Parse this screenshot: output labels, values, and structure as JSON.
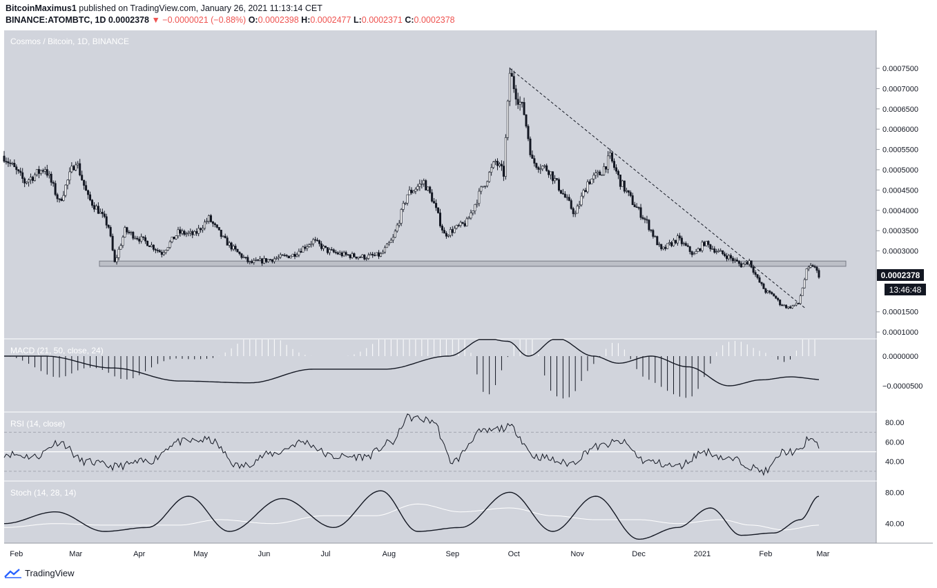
{
  "header": {
    "author": "BitcoinMaximus1",
    "published_text": "published on TradingView.com, January 26, 2021 11:13:14 CET",
    "symbol_line": "BINANCE:ATOMBTC, 1D",
    "last": "0.0002378",
    "change": "▼ −0.0000021 (−0.88%)",
    "o_label": "O:",
    "o_value": "0.0002398",
    "h_label": "H:",
    "h_value": "0.0002477",
    "l_label": "L:",
    "l_value": "0.0002371",
    "c_label": "C:",
    "c_value": "0.0002378"
  },
  "colors": {
    "panel_bg": "#d1d4dc",
    "candle": "#131722",
    "rsi_mid_line": "#ffffff",
    "stoch_d": "#ffffff",
    "change_red": "#ef5350",
    "price_tag_bg": "#131722"
  },
  "footer": {
    "brand": "TradingView",
    "icon": "tradingview-logo-icon"
  },
  "chart_data": [
    {
      "type": "candlestick",
      "title": "Cosmos / Bitcoin, 1D, BINANCE",
      "unit": "BTC",
      "y_ticks": [
        "0.0007500",
        "0.0007000",
        "0.0006500",
        "0.0006000",
        "0.0005500",
        "0.0005000",
        "0.0004500",
        "0.0004000",
        "0.0003500",
        "0.0003000",
        "0.0001500",
        "0.0001000"
      ],
      "ylim": [
        9e-05,
        0.00083
      ],
      "x_ticks": [
        "Feb",
        "Mar",
        "Apr",
        "May",
        "Jun",
        "Jul",
        "Aug",
        "Sep",
        "Oct",
        "Nov",
        "Dec",
        "2021",
        "Feb",
        "Mar"
      ],
      "last_price_label": "0.0002378",
      "countdown_label": "13:46:48",
      "series": [
        {
          "x": "2020-01-26",
          "y": 0.000534
        },
        {
          "x": "2020-02-05",
          "y": 0.00047
        },
        {
          "x": "2020-02-15",
          "y": 0.000505
        },
        {
          "x": "2020-02-22",
          "y": 0.00042
        },
        {
          "x": "2020-03-01",
          "y": 0.000525
        },
        {
          "x": "2020-03-07",
          "y": 0.00043
        },
        {
          "x": "2020-03-12",
          "y": 0.0004
        },
        {
          "x": "2020-03-17",
          "y": 0.00036
        },
        {
          "x": "2020-03-20",
          "y": 0.00027
        },
        {
          "x": "2020-03-25",
          "y": 0.00035
        },
        {
          "x": "2020-04-05",
          "y": 0.00032
        },
        {
          "x": "2020-04-12",
          "y": 0.000295
        },
        {
          "x": "2020-04-20",
          "y": 0.000345
        },
        {
          "x": "2020-04-28",
          "y": 0.00034
        },
        {
          "x": "2020-05-05",
          "y": 0.00038
        },
        {
          "x": "2020-05-12",
          "y": 0.00033
        },
        {
          "x": "2020-05-18",
          "y": 0.0003
        },
        {
          "x": "2020-05-25",
          "y": 0.00027
        },
        {
          "x": "2020-06-05",
          "y": 0.00028
        },
        {
          "x": "2020-06-15",
          "y": 0.00029
        },
        {
          "x": "2020-06-25",
          "y": 0.000325
        },
        {
          "x": "2020-07-02",
          "y": 0.0003
        },
        {
          "x": "2020-07-10",
          "y": 0.00029
        },
        {
          "x": "2020-07-20",
          "y": 0.000285
        },
        {
          "x": "2020-07-28",
          "y": 0.00029
        },
        {
          "x": "2020-08-03",
          "y": 0.00033
        },
        {
          "x": "2020-08-10",
          "y": 0.00044
        },
        {
          "x": "2020-08-18",
          "y": 0.00047
        },
        {
          "x": "2020-08-22",
          "y": 0.00043
        },
        {
          "x": "2020-08-28",
          "y": 0.00034
        },
        {
          "x": "2020-09-08",
          "y": 0.00037
        },
        {
          "x": "2020-09-15",
          "y": 0.00045
        },
        {
          "x": "2020-09-22",
          "y": 0.00052
        },
        {
          "x": "2020-09-26",
          "y": 0.00049
        },
        {
          "x": "2020-09-29",
          "y": 0.00074
        },
        {
          "x": "2020-10-02",
          "y": 0.00069
        },
        {
          "x": "2020-10-06",
          "y": 0.00064
        },
        {
          "x": "2020-10-10",
          "y": 0.00052
        },
        {
          "x": "2020-10-18",
          "y": 0.0005
        },
        {
          "x": "2020-10-25",
          "y": 0.00044
        },
        {
          "x": "2020-10-31",
          "y": 0.00039
        },
        {
          "x": "2020-11-06",
          "y": 0.00047
        },
        {
          "x": "2020-11-12",
          "y": 0.00049
        },
        {
          "x": "2020-11-17",
          "y": 0.00053
        },
        {
          "x": "2020-11-22",
          "y": 0.00047
        },
        {
          "x": "2020-11-28",
          "y": 0.00042
        },
        {
          "x": "2020-12-05",
          "y": 0.00037
        },
        {
          "x": "2020-12-12",
          "y": 0.0003
        },
        {
          "x": "2020-12-20",
          "y": 0.00033
        },
        {
          "x": "2020-12-28",
          "y": 0.00029
        },
        {
          "x": "2021-01-02",
          "y": 0.00032
        },
        {
          "x": "2021-01-08",
          "y": 0.0003
        },
        {
          "x": "2021-01-14",
          "y": 0.000285
        },
        {
          "x": "2021-01-20",
          "y": 0.000265
        },
        {
          "x": "2021-01-24",
          "y": 0.000275
        },
        {
          "x": "2021-01-28",
          "y": 0.00023
        },
        {
          "x": "2021-02-01",
          "y": 0.0002
        },
        {
          "x": "2021-02-05",
          "y": 0.00019
        },
        {
          "x": "2021-02-08",
          "y": 0.00017
        },
        {
          "x": "2021-02-12",
          "y": 0.00016
        },
        {
          "x": "2021-02-17",
          "y": 0.00017
        },
        {
          "x": "2021-02-21",
          "y": 0.00025
        },
        {
          "x": "2021-02-24",
          "y": 0.000265
        },
        {
          "x": "2021-02-27",
          "y": 0.00024
        }
      ],
      "support_zone": [
        0.000262,
        0.000275
      ],
      "trendline": {
        "from": {
          "x": "2020-09-29",
          "y": 0.00075
        },
        "to": {
          "x": "2021-02-20",
          "y": 0.00016
        }
      }
    },
    {
      "type": "line",
      "title": "MACD (21, 50, close, 24)",
      "y_ticks": [
        "0.0000000",
        "−0.0000500"
      ],
      "series": [
        {
          "x": "2020-01-26",
          "y": 0.0
        },
        {
          "x": "2020-02-28",
          "y": -2e-05
        },
        {
          "x": "2020-04-01",
          "y": -4.2e-05
        },
        {
          "x": "2020-05-05",
          "y": -4.5e-05
        },
        {
          "x": "2020-06-05",
          "y": -2.2e-05
        },
        {
          "x": "2020-07-10",
          "y": -2.2e-05
        },
        {
          "x": "2020-08-10",
          "y": 0.0
        },
        {
          "x": "2020-08-28",
          "y": 3e-05
        },
        {
          "x": "2020-09-08",
          "y": 2.5e-05
        },
        {
          "x": "2020-09-18",
          "y": 0.0
        },
        {
          "x": "2020-10-02",
          "y": 3e-05
        },
        {
          "x": "2020-10-20",
          "y": 0.0
        },
        {
          "x": "2020-11-01",
          "y": -1.2e-05
        },
        {
          "x": "2020-11-17",
          "y": 0.0
        },
        {
          "x": "2020-12-05",
          "y": -1.8e-05
        },
        {
          "x": "2020-12-25",
          "y": -5e-05
        },
        {
          "x": "2021-01-10",
          "y": -4e-05
        },
        {
          "x": "2021-01-24",
          "y": -3.5e-05
        },
        {
          "x": "2021-02-10",
          "y": -4e-05
        },
        {
          "x": "2021-02-27",
          "y": -8e-06
        }
      ]
    },
    {
      "type": "line",
      "title": "RSI (14, close)",
      "y_ticks": [
        "80.00",
        "60.00",
        "40.00"
      ],
      "ylim": [
        20,
        85
      ],
      "levels": [
        70,
        50,
        30
      ],
      "series": [
        {
          "x": "2020-01-26",
          "y": 48
        },
        {
          "x": "2020-02-10",
          "y": 45
        },
        {
          "x": "2020-02-22",
          "y": 60
        },
        {
          "x": "2020-03-05",
          "y": 40
        },
        {
          "x": "2020-03-20",
          "y": 35
        },
        {
          "x": "2020-04-05",
          "y": 40
        },
        {
          "x": "2020-04-20",
          "y": 60
        },
        {
          "x": "2020-05-05",
          "y": 62
        },
        {
          "x": "2020-05-20",
          "y": 35
        },
        {
          "x": "2020-06-05",
          "y": 48
        },
        {
          "x": "2020-06-20",
          "y": 60
        },
        {
          "x": "2020-07-05",
          "y": 45
        },
        {
          "x": "2020-07-20",
          "y": 45
        },
        {
          "x": "2020-08-03",
          "y": 60
        },
        {
          "x": "2020-08-10",
          "y": 85
        },
        {
          "x": "2020-08-22",
          "y": 82
        },
        {
          "x": "2020-09-01",
          "y": 40
        },
        {
          "x": "2020-09-15",
          "y": 70
        },
        {
          "x": "2020-09-29",
          "y": 75
        },
        {
          "x": "2020-10-12",
          "y": 45
        },
        {
          "x": "2020-10-28",
          "y": 38
        },
        {
          "x": "2020-11-10",
          "y": 55
        },
        {
          "x": "2020-11-22",
          "y": 60
        },
        {
          "x": "2020-12-05",
          "y": 40
        },
        {
          "x": "2020-12-20",
          "y": 35
        },
        {
          "x": "2021-01-02",
          "y": 50
        },
        {
          "x": "2021-01-15",
          "y": 42
        },
        {
          "x": "2021-02-01",
          "y": 30
        },
        {
          "x": "2021-02-10",
          "y": 50
        },
        {
          "x": "2021-02-18",
          "y": 50
        },
        {
          "x": "2021-02-22",
          "y": 65
        },
        {
          "x": "2021-02-27",
          "y": 55
        }
      ]
    },
    {
      "type": "line",
      "title": "Stoch (14, 28, 14)",
      "y_ticks": [
        "80.00",
        "40.00"
      ],
      "ylim": [
        15,
        90
      ],
      "series": [
        {
          "name": "%K",
          "points": [
            {
              "x": "2020-01-26",
              "y": 40
            },
            {
              "x": "2020-02-20",
              "y": 55
            },
            {
              "x": "2020-03-15",
              "y": 30
            },
            {
              "x": "2020-04-05",
              "y": 35
            },
            {
              "x": "2020-04-25",
              "y": 75
            },
            {
              "x": "2020-05-15",
              "y": 30
            },
            {
              "x": "2020-06-10",
              "y": 72
            },
            {
              "x": "2020-07-05",
              "y": 35
            },
            {
              "x": "2020-07-28",
              "y": 82
            },
            {
              "x": "2020-08-15",
              "y": 30
            },
            {
              "x": "2020-09-05",
              "y": 35
            },
            {
              "x": "2020-09-29",
              "y": 80
            },
            {
              "x": "2020-10-20",
              "y": 30
            },
            {
              "x": "2020-11-10",
              "y": 75
            },
            {
              "x": "2020-12-01",
              "y": 20
            },
            {
              "x": "2020-12-20",
              "y": 35
            },
            {
              "x": "2021-01-05",
              "y": 60
            },
            {
              "x": "2021-01-20",
              "y": 25
            },
            {
              "x": "2021-02-05",
              "y": 28
            },
            {
              "x": "2021-02-18",
              "y": 45
            },
            {
              "x": "2021-02-27",
              "y": 75
            }
          ]
        },
        {
          "name": "%D",
          "points": [
            {
              "x": "2020-01-26",
              "y": 35
            },
            {
              "x": "2020-02-20",
              "y": 40
            },
            {
              "x": "2020-03-15",
              "y": 38
            },
            {
              "x": "2020-04-20",
              "y": 38
            },
            {
              "x": "2020-05-10",
              "y": 45
            },
            {
              "x": "2020-06-05",
              "y": 40
            },
            {
              "x": "2020-06-30",
              "y": 50
            },
            {
              "x": "2020-07-25",
              "y": 50
            },
            {
              "x": "2020-08-15",
              "y": 65
            },
            {
              "x": "2020-09-05",
              "y": 55
            },
            {
              "x": "2020-09-29",
              "y": 60
            },
            {
              "x": "2020-10-20",
              "y": 50
            },
            {
              "x": "2020-11-10",
              "y": 45
            },
            {
              "x": "2020-12-01",
              "y": 45
            },
            {
              "x": "2020-12-20",
              "y": 40
            },
            {
              "x": "2021-01-10",
              "y": 45
            },
            {
              "x": "2021-01-25",
              "y": 38
            },
            {
              "x": "2021-02-10",
              "y": 32
            },
            {
              "x": "2021-02-27",
              "y": 38
            }
          ]
        }
      ]
    }
  ]
}
